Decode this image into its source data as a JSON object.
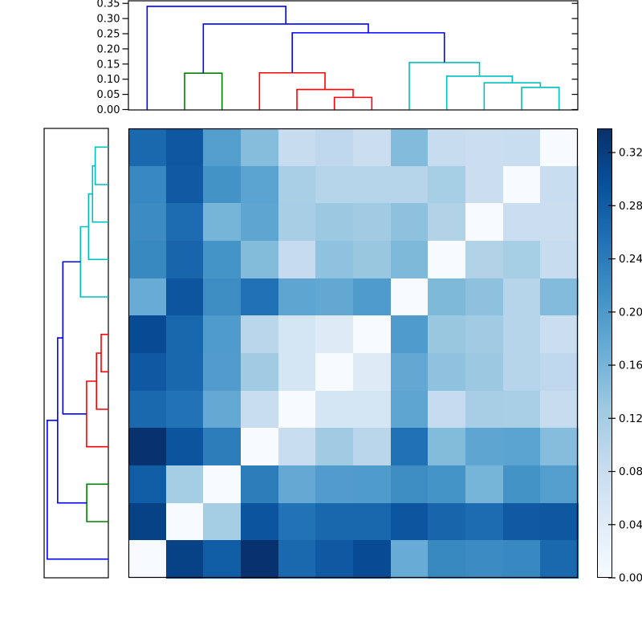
{
  "figure": {
    "background": "#ffffff",
    "border_color": "#000000"
  },
  "chart_data": {
    "type": "heatmap",
    "subtype": "clustered-distance-matrix (clustermap)",
    "title": "",
    "n": 12,
    "colormap": "Blues",
    "vmin": 0.0,
    "vmax": 0.338,
    "grid": false,
    "note": "row order is the reverse of column order; anti-diagonal cells are zero distance",
    "matrix": [
      [
        0.266,
        0.287,
        0.193,
        0.146,
        0.082,
        0.092,
        0.077,
        0.15,
        0.081,
        0.077,
        0.08,
        0.0
      ],
      [
        0.224,
        0.284,
        0.209,
        0.186,
        0.115,
        0.1,
        0.1,
        0.1,
        0.118,
        0.077,
        0.0,
        0.08
      ],
      [
        0.219,
        0.26,
        0.16,
        0.182,
        0.117,
        0.128,
        0.125,
        0.14,
        0.106,
        0.0,
        0.077,
        0.077
      ],
      [
        0.223,
        0.269,
        0.208,
        0.149,
        0.085,
        0.139,
        0.131,
        0.153,
        0.0,
        0.106,
        0.118,
        0.081
      ],
      [
        0.172,
        0.289,
        0.218,
        0.253,
        0.182,
        0.178,
        0.198,
        0.0,
        0.153,
        0.14,
        0.1,
        0.15
      ],
      [
        0.303,
        0.268,
        0.198,
        0.097,
        0.059,
        0.043,
        0.0,
        0.198,
        0.131,
        0.125,
        0.1,
        0.077
      ],
      [
        0.285,
        0.267,
        0.196,
        0.124,
        0.059,
        0.0,
        0.043,
        0.178,
        0.139,
        0.128,
        0.1,
        0.092
      ],
      [
        0.265,
        0.252,
        0.176,
        0.079,
        0.0,
        0.059,
        0.059,
        0.182,
        0.085,
        0.117,
        0.115,
        0.082
      ],
      [
        0.335,
        0.291,
        0.238,
        0.0,
        0.079,
        0.124,
        0.097,
        0.253,
        0.149,
        0.182,
        0.186,
        0.146
      ],
      [
        0.28,
        0.119,
        0.0,
        0.238,
        0.176,
        0.196,
        0.198,
        0.218,
        0.208,
        0.16,
        0.209,
        0.193
      ],
      [
        0.315,
        0.0,
        0.119,
        0.291,
        0.252,
        0.267,
        0.268,
        0.289,
        0.269,
        0.26,
        0.284,
        0.287
      ],
      [
        0.0,
        0.315,
        0.28,
        0.335,
        0.265,
        0.285,
        0.303,
        0.172,
        0.223,
        0.219,
        0.224,
        0.266
      ]
    ],
    "top_dendrogram": {
      "ylim": [
        0.0,
        0.357
      ],
      "tick_labels": [
        "0.00",
        "0.05",
        "0.10",
        "0.15",
        "0.20",
        "0.25",
        "0.30",
        "0.35"
      ],
      "tick_values": [
        0.0,
        0.05,
        0.1,
        0.15,
        0.2,
        0.25,
        0.3,
        0.35
      ],
      "links": [
        {
          "color": "g",
          "p1": 1,
          "h1": 0,
          "p2": 2,
          "h2": 0,
          "h": 0.12
        },
        {
          "color": "r",
          "p1": 5,
          "h1": 0,
          "p2": 6,
          "h2": 0,
          "h": 0.04
        },
        {
          "color": "r",
          "p1": 4,
          "h1": 0,
          "p2": 5.5,
          "h2": 0.04,
          "h": 0.066
        },
        {
          "color": "r",
          "p1": 3,
          "h1": 0,
          "p2": 4.75,
          "h2": 0.066,
          "h": 0.121
        },
        {
          "color": "c",
          "p1": 10,
          "h1": 0,
          "p2": 11,
          "h2": 0,
          "h": 0.073
        },
        {
          "color": "c",
          "p1": 9,
          "h1": 0,
          "p2": 10.5,
          "h2": 0.073,
          "h": 0.088
        },
        {
          "color": "c",
          "p1": 8,
          "h1": 0,
          "p2": 9.75,
          "h2": 0.088,
          "h": 0.11
        },
        {
          "color": "c",
          "p1": 7,
          "h1": 0,
          "p2": 8.875,
          "h2": 0.11,
          "h": 0.155
        },
        {
          "color": "b",
          "p1": 3.875,
          "h1": 0.121,
          "p2": 7.9375,
          "h2": 0.155,
          "h": 0.253
        },
        {
          "color": "b",
          "p1": 1.5,
          "h1": 0.12,
          "p2": 5.90625,
          "h2": 0.253,
          "h": 0.282
        },
        {
          "color": "b",
          "p1": 0,
          "h1": 0,
          "p2": 3.703125,
          "h2": 0.282,
          "h": 0.34
        }
      ]
    },
    "left_dendrogram": {
      "xlim": [
        0.0,
        0.357
      ],
      "links": [
        {
          "color": "c",
          "p1": 0,
          "h1": 0,
          "p2": 1,
          "h2": 0,
          "h": 0.073
        },
        {
          "color": "c",
          "p1": 0.5,
          "h1": 0.073,
          "p2": 2,
          "h2": 0,
          "h": 0.088
        },
        {
          "color": "c",
          "p1": 1.25,
          "h1": 0.088,
          "p2": 3,
          "h2": 0,
          "h": 0.11
        },
        {
          "color": "c",
          "p1": 2.125,
          "h1": 0.11,
          "p2": 4,
          "h2": 0,
          "h": 0.155
        },
        {
          "color": "r",
          "p1": 5,
          "h1": 0,
          "p2": 6,
          "h2": 0,
          "h": 0.04
        },
        {
          "color": "r",
          "p1": 5.5,
          "h1": 0.04,
          "p2": 7,
          "h2": 0,
          "h": 0.066
        },
        {
          "color": "r",
          "p1": 6.25,
          "h1": 0.066,
          "p2": 8,
          "h2": 0,
          "h": 0.121
        },
        {
          "color": "g",
          "p1": 9,
          "h1": 0,
          "p2": 10,
          "h2": 0,
          "h": 0.12
        },
        {
          "color": "b",
          "p1": 3.0625,
          "h1": 0.155,
          "p2": 7.125,
          "h2": 0.121,
          "h": 0.253
        },
        {
          "color": "b",
          "p1": 5.09375,
          "h1": 0.253,
          "p2": 9.5,
          "h2": 0.12,
          "h": 0.282
        },
        {
          "color": "b",
          "p1": 7.296875,
          "h1": 0.282,
          "p2": 11,
          "h2": 0,
          "h": 0.34
        }
      ]
    },
    "colorbar": {
      "tick_labels": [
        "0.00",
        "0.04",
        "0.08",
        "0.12",
        "0.16",
        "0.20",
        "0.24",
        "0.28",
        "0.32"
      ],
      "tick_values": [
        0.0,
        0.04,
        0.08,
        0.12,
        0.16,
        0.2,
        0.24,
        0.28,
        0.32
      ]
    },
    "link_colors": {
      "b": "#0000ff",
      "g": "#008000",
      "r": "#ff0000",
      "c": "#00bfbf"
    },
    "blues_colormap_anchors_rgb": [
      [
        247,
        251,
        255
      ],
      [
        222,
        235,
        247
      ],
      [
        198,
        219,
        239
      ],
      [
        158,
        202,
        225
      ],
      [
        107,
        174,
        214
      ],
      [
        66,
        146,
        198
      ],
      [
        33,
        113,
        181
      ],
      [
        8,
        81,
        156
      ],
      [
        8,
        48,
        107
      ]
    ]
  }
}
